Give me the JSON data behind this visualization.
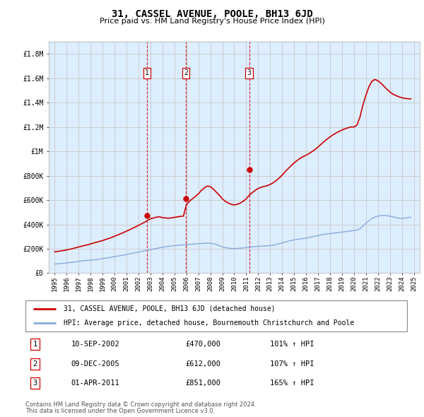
{
  "title": "31, CASSEL AVENUE, POOLE, BH13 6JD",
  "subtitle": "Price paid vs. HM Land Registry's House Price Index (HPI)",
  "footer_line1": "Contains HM Land Registry data © Crown copyright and database right 2024.",
  "footer_line2": "This data is licensed under the Open Government Licence v3.0.",
  "legend_house": "31, CASSEL AVENUE, POOLE, BH13 6JD (detached house)",
  "legend_hpi": "HPI: Average price, detached house, Bournemouth Christchurch and Poole",
  "transactions": [
    {
      "num": 1,
      "date": "10-SEP-2002",
      "price": "£470,000",
      "pct": "101% ↑ HPI",
      "year": 2002.7,
      "value": 470000
    },
    {
      "num": 2,
      "date": "09-DEC-2005",
      "price": "£612,000",
      "pct": "107% ↑ HPI",
      "year": 2005.95,
      "value": 612000
    },
    {
      "num": 3,
      "date": "01-APR-2011",
      "price": "£851,000",
      "pct": "165% ↑ HPI",
      "year": 2011.25,
      "value": 851000
    }
  ],
  "house_color": "#cc0000",
  "hpi_color": "#88aadd",
  "vline_color": "#cc0000",
  "grid_color": "#cccccc",
  "bg_color": "#ddeeff",
  "ylim": [
    0,
    1900000
  ],
  "yticks": [
    0,
    200000,
    400000,
    600000,
    800000,
    1000000,
    1200000,
    1400000,
    1600000,
    1800000
  ],
  "ytick_labels": [
    "£0",
    "£200K",
    "£400K",
    "£600K",
    "£800K",
    "£1M",
    "£1.2M",
    "£1.4M",
    "£1.6M",
    "£1.8M"
  ],
  "xmin": 1994.5,
  "xmax": 2025.5,
  "hpi_x": [
    1995.0,
    1995.25,
    1995.5,
    1995.75,
    1996.0,
    1996.25,
    1996.5,
    1996.75,
    1997.0,
    1997.25,
    1997.5,
    1997.75,
    1998.0,
    1998.25,
    1998.5,
    1998.75,
    1999.0,
    1999.25,
    1999.5,
    1999.75,
    2000.0,
    2000.25,
    2000.5,
    2000.75,
    2001.0,
    2001.25,
    2001.5,
    2001.75,
    2002.0,
    2002.25,
    2002.5,
    2002.75,
    2003.0,
    2003.25,
    2003.5,
    2003.75,
    2004.0,
    2004.25,
    2004.5,
    2004.75,
    2005.0,
    2005.25,
    2005.5,
    2005.75,
    2006.0,
    2006.25,
    2006.5,
    2006.75,
    2007.0,
    2007.25,
    2007.5,
    2007.75,
    2008.0,
    2008.25,
    2008.5,
    2008.75,
    2009.0,
    2009.25,
    2009.5,
    2009.75,
    2010.0,
    2010.25,
    2010.5,
    2010.75,
    2011.0,
    2011.25,
    2011.5,
    2011.75,
    2012.0,
    2012.25,
    2012.5,
    2012.75,
    2013.0,
    2013.25,
    2013.5,
    2013.75,
    2014.0,
    2014.25,
    2014.5,
    2014.75,
    2015.0,
    2015.25,
    2015.5,
    2015.75,
    2016.0,
    2016.25,
    2016.5,
    2016.75,
    2017.0,
    2017.25,
    2017.5,
    2017.75,
    2018.0,
    2018.25,
    2018.5,
    2018.75,
    2019.0,
    2019.25,
    2019.5,
    2019.75,
    2020.0,
    2020.25,
    2020.5,
    2020.75,
    2021.0,
    2021.25,
    2021.5,
    2021.75,
    2022.0,
    2022.25,
    2022.5,
    2022.75,
    2023.0,
    2023.25,
    2023.5,
    2023.75,
    2024.0,
    2024.25,
    2024.5,
    2024.75
  ],
  "hpi_y": [
    75000,
    77000,
    79000,
    81000,
    84000,
    87000,
    90000,
    93000,
    97000,
    100000,
    103000,
    105000,
    107000,
    109000,
    112000,
    115000,
    119000,
    123000,
    127000,
    131000,
    136000,
    140000,
    144000,
    148000,
    153000,
    158000,
    163000,
    168000,
    173000,
    178000,
    183000,
    188000,
    193000,
    198000,
    203000,
    208000,
    212000,
    216000,
    220000,
    223000,
    226000,
    228000,
    230000,
    232000,
    234000,
    236000,
    238000,
    240000,
    242000,
    244000,
    246000,
    247000,
    246000,
    242000,
    235000,
    225000,
    216000,
    210000,
    206000,
    203000,
    202000,
    203000,
    205000,
    207000,
    210000,
    212000,
    215000,
    218000,
    220000,
    222000,
    223000,
    224000,
    226000,
    230000,
    235000,
    241000,
    248000,
    255000,
    262000,
    268000,
    273000,
    277000,
    281000,
    284000,
    288000,
    293000,
    298000,
    303000,
    308000,
    313000,
    318000,
    322000,
    325000,
    328000,
    331000,
    334000,
    337000,
    340000,
    343000,
    347000,
    350000,
    354000,
    365000,
    385000,
    410000,
    430000,
    448000,
    460000,
    468000,
    472000,
    474000,
    472000,
    468000,
    462000,
    456000,
    452000,
    450000,
    452000,
    455000,
    460000
  ],
  "house_x": [
    1995.0,
    1995.25,
    1995.5,
    1995.75,
    1996.0,
    1996.25,
    1996.5,
    1996.75,
    1997.0,
    1997.25,
    1997.5,
    1997.75,
    1998.0,
    1998.25,
    1998.5,
    1998.75,
    1999.0,
    1999.25,
    1999.5,
    1999.75,
    2000.0,
    2000.25,
    2000.5,
    2000.75,
    2001.0,
    2001.25,
    2001.5,
    2001.75,
    2002.0,
    2002.25,
    2002.5,
    2002.75,
    2003.0,
    2003.25,
    2003.5,
    2003.75,
    2004.0,
    2004.25,
    2004.5,
    2004.75,
    2005.0,
    2005.25,
    2005.5,
    2005.75,
    2006.0,
    2006.25,
    2006.5,
    2006.75,
    2007.0,
    2007.25,
    2007.5,
    2007.75,
    2008.0,
    2008.25,
    2008.5,
    2008.75,
    2009.0,
    2009.25,
    2009.5,
    2009.75,
    2010.0,
    2010.25,
    2010.5,
    2010.75,
    2011.0,
    2011.25,
    2011.5,
    2011.75,
    2012.0,
    2012.25,
    2012.5,
    2012.75,
    2013.0,
    2013.25,
    2013.5,
    2013.75,
    2014.0,
    2014.25,
    2014.5,
    2014.75,
    2015.0,
    2015.25,
    2015.5,
    2015.75,
    2016.0,
    2016.25,
    2016.5,
    2016.75,
    2017.0,
    2017.25,
    2017.5,
    2017.75,
    2018.0,
    2018.25,
    2018.5,
    2018.75,
    2019.0,
    2019.25,
    2019.5,
    2019.75,
    2020.0,
    2020.25,
    2020.5,
    2020.75,
    2021.0,
    2021.25,
    2021.5,
    2021.75,
    2022.0,
    2022.25,
    2022.5,
    2022.75,
    2023.0,
    2023.25,
    2023.5,
    2023.75,
    2024.0,
    2024.25,
    2024.5,
    2024.75
  ],
  "house_y": [
    175000,
    178000,
    182000,
    186000,
    191000,
    196000,
    202000,
    208000,
    215000,
    221000,
    227000,
    233000,
    240000,
    247000,
    254000,
    261000,
    268000,
    276000,
    284000,
    293000,
    303000,
    313000,
    323000,
    334000,
    345000,
    356000,
    368000,
    380000,
    392000,
    405000,
    418000,
    432000,
    446000,
    453000,
    460000,
    462000,
    456000,
    453000,
    451000,
    454000,
    458000,
    462000,
    466000,
    468000,
    560000,
    590000,
    610000,
    630000,
    650000,
    680000,
    700000,
    715000,
    710000,
    690000,
    665000,
    640000,
    610000,
    590000,
    575000,
    565000,
    560000,
    565000,
    575000,
    590000,
    610000,
    640000,
    660000,
    680000,
    695000,
    705000,
    712000,
    718000,
    728000,
    742000,
    760000,
    780000,
    805000,
    832000,
    858000,
    882000,
    905000,
    925000,
    942000,
    956000,
    968000,
    982000,
    998000,
    1015000,
    1035000,
    1058000,
    1080000,
    1100000,
    1118000,
    1135000,
    1150000,
    1163000,
    1175000,
    1185000,
    1193000,
    1200000,
    1200000,
    1215000,
    1280000,
    1380000,
    1460000,
    1530000,
    1575000,
    1590000,
    1580000,
    1560000,
    1535000,
    1510000,
    1488000,
    1470000,
    1458000,
    1448000,
    1440000,
    1435000,
    1432000,
    1430000
  ]
}
